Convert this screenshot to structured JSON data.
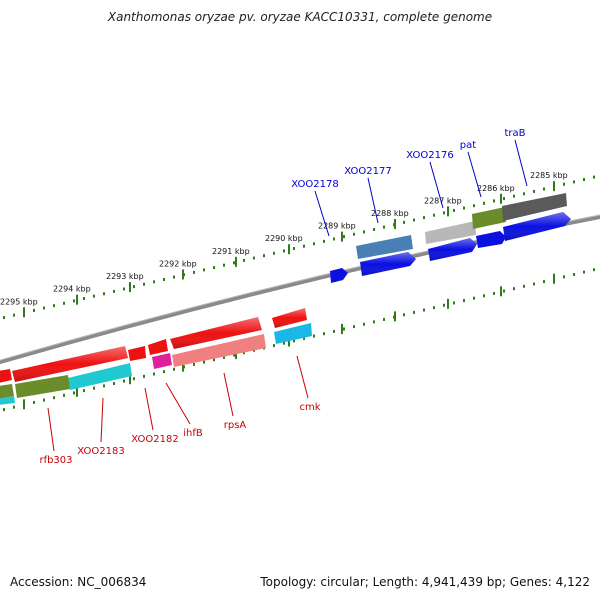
{
  "title": "Xanthomonas oryzae pv. oryzae KACC10331, complete genome",
  "footer": {
    "accession": "Accession: NC_006834",
    "topology": "Topology: circular; Length: 4,941,439 bp; Genes: 4,122"
  },
  "ticks": [
    "2285 kbp",
    "2286 kbp",
    "2287 kbp",
    "2288 kbp",
    "2289 kbp",
    "2290 kbp",
    "2291 kbp",
    "2292 kbp",
    "2293 kbp",
    "2294 kbp",
    "2295 kbp"
  ],
  "genes_top": [
    {
      "name": "traB",
      "color": "#0000cc"
    },
    {
      "name": "pat",
      "color": "#0000cc"
    },
    {
      "name": "XOO2176",
      "color": "#0000cc"
    },
    {
      "name": "XOO2177",
      "color": "#0000cc"
    },
    {
      "name": "XOO2178",
      "color": "#0000cc"
    }
  ],
  "genes_bottom": [
    {
      "name": "cmk",
      "color": "#cc0000"
    },
    {
      "name": "rpsA",
      "color": "#cc0000"
    },
    {
      "name": "ihfB",
      "color": "#cc0000"
    },
    {
      "name": "XOO2182",
      "color": "#cc0000"
    },
    {
      "name": "XOO2183",
      "color": "#cc0000"
    },
    {
      "name": "rfb303",
      "color": "#cc0000"
    }
  ]
}
